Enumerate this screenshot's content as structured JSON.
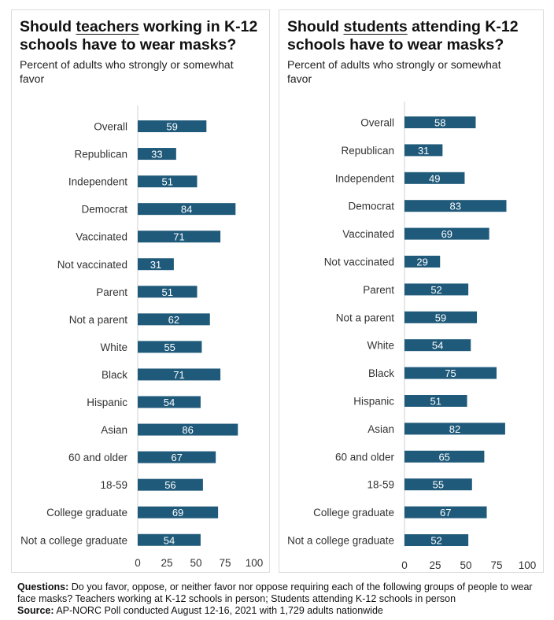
{
  "chart_data": [
    {
      "type": "bar",
      "orientation": "horizontal",
      "title_pre": "Should ",
      "title_underlined": "teachers",
      "title_post": " working in K-12 schools have to wear masks?",
      "subtitle": "Percent of adults who strongly or somewhat favor",
      "categories": [
        "Overall",
        "Republican",
        "Independent",
        "Democrat",
        "Vaccinated",
        "Not vaccinated",
        "Parent",
        "Not a parent",
        "White",
        "Black",
        "Hispanic",
        "Asian",
        "60 and older",
        "18-59",
        "College graduate",
        "Not a college graduate"
      ],
      "values": [
        59,
        33,
        51,
        84,
        71,
        31,
        51,
        62,
        55,
        71,
        54,
        86,
        67,
        56,
        69,
        54
      ],
      "xlim": [
        0,
        100
      ],
      "xticks": [
        0,
        25,
        50,
        75,
        100
      ],
      "color": "#1f5a7a",
      "grid": false
    },
    {
      "type": "bar",
      "orientation": "horizontal",
      "title_pre": "Should ",
      "title_underlined": "students",
      "title_post": " attending K-12 schools have to wear masks?",
      "subtitle": "Percent of adults who strongly or somewhat favor",
      "categories": [
        "Overall",
        "Republican",
        "Independent",
        "Democrat",
        "Vaccinated",
        "Not vaccinated",
        "Parent",
        "Not a parent",
        "White",
        "Black",
        "Hispanic",
        "Asian",
        "60 and older",
        "18-59",
        "College graduate",
        "Not a college graduate"
      ],
      "values": [
        58,
        31,
        49,
        83,
        69,
        29,
        52,
        59,
        54,
        75,
        51,
        82,
        65,
        55,
        67,
        52
      ],
      "xlim": [
        0,
        100
      ],
      "xticks": [
        0,
        25,
        50,
        75,
        100
      ],
      "color": "#1f5a7a",
      "grid": false
    }
  ],
  "footer": {
    "questions_label": "Questions:",
    "questions_text": " Do you favor, oppose, or neither favor nor oppose requiring each of the following groups of people to wear face masks? Teachers working at K-12 schools in person; Students attending K-12 schools in person",
    "source_label": "Source:",
    "source_text": " AP-NORC Poll conducted August 12-16, 2021 with 1,729 adults nationwide"
  }
}
